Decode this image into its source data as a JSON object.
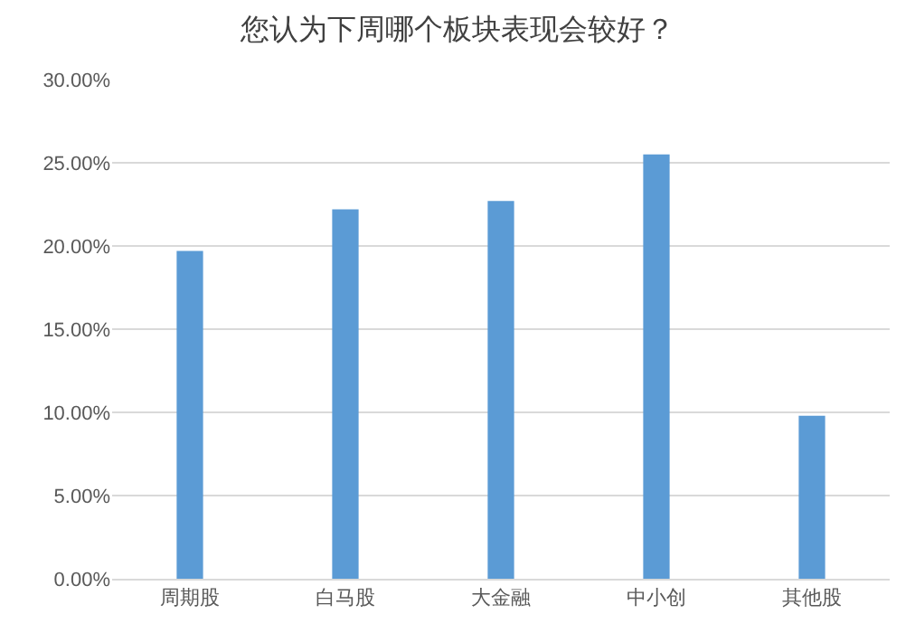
{
  "chart_data": {
    "type": "bar",
    "title": "您认为下周哪个板块表现会较好？",
    "categories": [
      "周期股",
      "白马股",
      "大金融",
      "中小创",
      "其他股"
    ],
    "values": [
      19.7,
      22.2,
      22.7,
      25.5,
      9.8
    ],
    "color": "#5b9bd5",
    "ylim": [
      0,
      30
    ],
    "yticks": [
      {
        "value": 0,
        "label": "0.00%"
      },
      {
        "value": 5,
        "label": "5.00%"
      },
      {
        "value": 10,
        "label": "10.00%"
      },
      {
        "value": 15,
        "label": "15.00%"
      },
      {
        "value": 20,
        "label": "20.00%"
      },
      {
        "value": 25,
        "label": "25.00%"
      },
      {
        "value": 30,
        "label": "30.00%"
      }
    ],
    "grid": true
  }
}
